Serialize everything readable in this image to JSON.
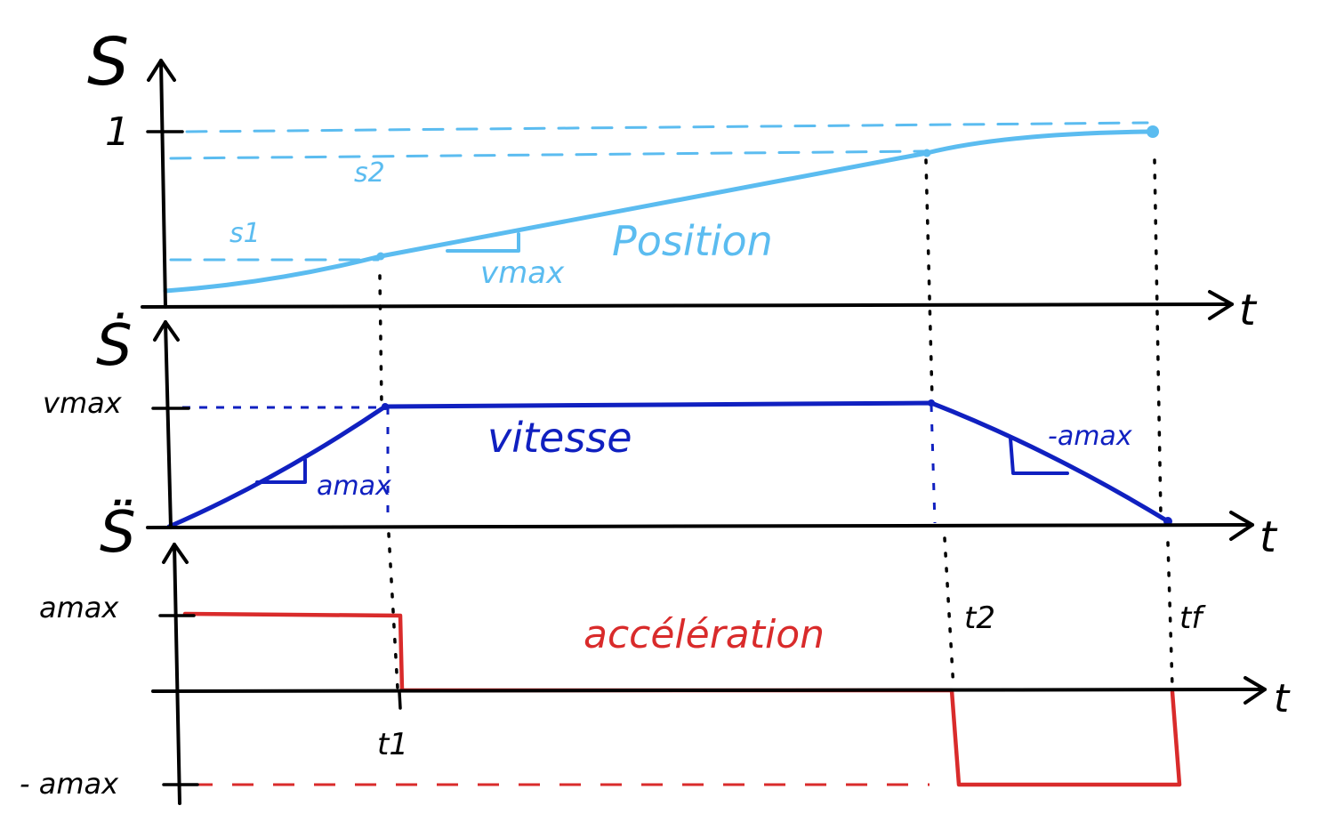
{
  "colors": {
    "axis": "#000000",
    "position": "#5bbcf0",
    "velocity": "#1020c0",
    "acceleration": "#d92b2b"
  },
  "panels": {
    "position": {
      "axis_label": "S",
      "time_label": "t",
      "tick_one": "1",
      "level_s1": "s1",
      "level_s2": "s2",
      "curve_label": "Position",
      "slope_label": "vmax"
    },
    "velocity": {
      "axis_label": "Ṡ",
      "time_label": "t",
      "tick_vmax": "vmax",
      "curve_label": "vitesse",
      "slope_up_label": "amax",
      "slope_down_label": "-amax"
    },
    "acceleration": {
      "axis_label": "S̈",
      "time_label": "t",
      "tick_amax": "amax",
      "tick_neg_amax": "- amax",
      "curve_label": "accélération",
      "t1": "t1",
      "t2": "t2",
      "tf": "tf"
    }
  }
}
